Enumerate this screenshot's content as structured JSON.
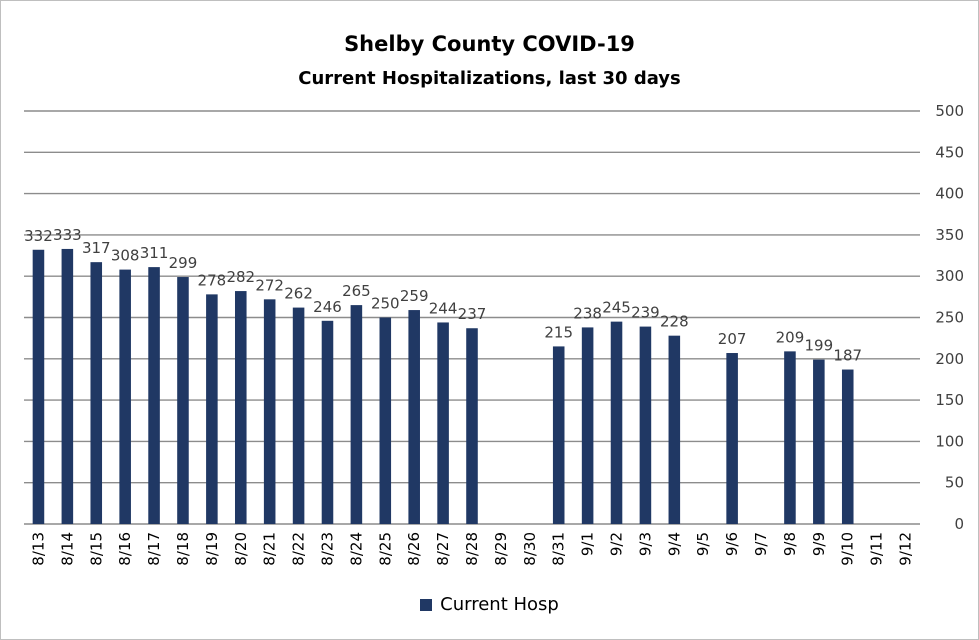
{
  "chart_data": {
    "type": "bar",
    "title": "Shelby County COVID-19",
    "subtitle": "Current Hospitalizations, last 30 days",
    "xlabel": "",
    "ylabel": "",
    "ylim": [
      0,
      500
    ],
    "yticks": [
      0,
      50,
      100,
      150,
      200,
      250,
      300,
      350,
      400,
      450,
      500
    ],
    "grid": true,
    "legend_position": "bottom",
    "bar_color": "#203864",
    "categories": [
      "8/13",
      "8/14",
      "8/15",
      "8/16",
      "8/17",
      "8/18",
      "8/19",
      "8/20",
      "8/21",
      "8/22",
      "8/23",
      "8/24",
      "8/25",
      "8/26",
      "8/27",
      "8/28",
      "8/29",
      "8/30",
      "8/31",
      "9/1",
      "9/2",
      "9/3",
      "9/4",
      "9/5",
      "9/6",
      "9/7",
      "9/8",
      "9/9",
      "9/10",
      "9/11",
      "9/12"
    ],
    "series": [
      {
        "name": "Current Hosp",
        "values": [
          332,
          333,
          317,
          308,
          311,
          299,
          278,
          282,
          272,
          262,
          246,
          265,
          250,
          259,
          244,
          237,
          null,
          null,
          215,
          238,
          245,
          239,
          228,
          null,
          207,
          null,
          209,
          199,
          187,
          null,
          null
        ]
      }
    ]
  }
}
